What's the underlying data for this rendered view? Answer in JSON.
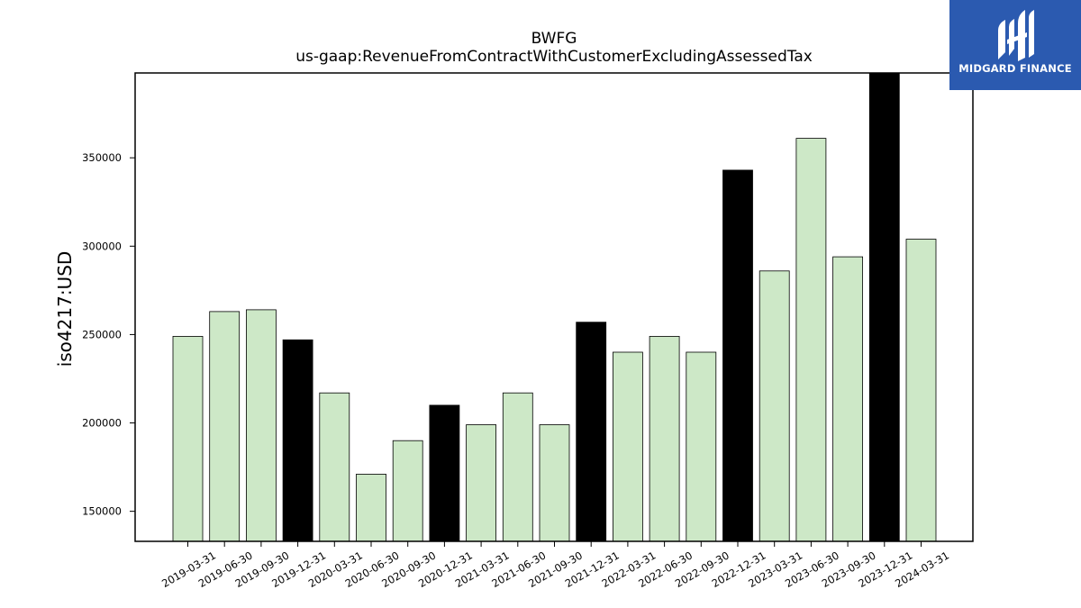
{
  "logo": {
    "text": "MIDGARD FINANCE",
    "icon": "midgard-finance-logo-icon",
    "color": "#2b5ab0"
  },
  "chart_data": {
    "type": "bar",
    "title": "BWFG",
    "subtitle": "us-gaap:RevenueFromContractWithCustomerExcludingAssessedTax",
    "xlabel": "",
    "ylabel": "iso4217:USD",
    "ylim": [
      133000,
      398000
    ],
    "yticks": [
      150000,
      200000,
      250000,
      300000,
      350000
    ],
    "grid": false,
    "categories": [
      "2019-03-31",
      "2019-06-30",
      "2019-09-30",
      "2019-12-31",
      "2020-03-31",
      "2020-06-30",
      "2020-09-30",
      "2020-12-31",
      "2021-03-31",
      "2021-06-30",
      "2021-09-30",
      "2021-12-31",
      "2022-03-31",
      "2022-06-30",
      "2022-09-30",
      "2022-12-31",
      "2023-03-31",
      "2023-06-30",
      "2023-09-30",
      "2023-12-31",
      "2024-03-31"
    ],
    "values": [
      249000,
      263000,
      264000,
      247000,
      217000,
      171000,
      190000,
      210000,
      199000,
      217000,
      199000,
      257000,
      240000,
      249000,
      240000,
      343000,
      286000,
      361000,
      294000,
      398000,
      304000
    ],
    "highlight": [
      false,
      false,
      false,
      true,
      false,
      false,
      false,
      true,
      false,
      false,
      false,
      true,
      false,
      false,
      false,
      true,
      false,
      false,
      false,
      true,
      false
    ],
    "colors": {
      "bar": "#cde8c7",
      "highlight": "#000000",
      "edge": "#000000"
    }
  }
}
